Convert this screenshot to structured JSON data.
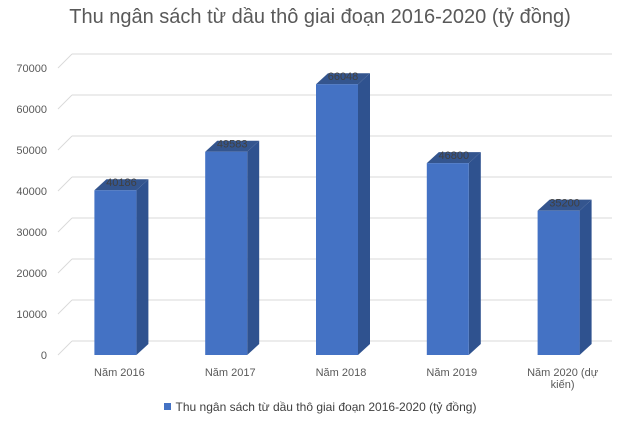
{
  "chart_data": {
    "type": "bar",
    "title": "Thu ngân sách từ dầu thô giai đoạn 2016-2020 (tỷ đồng)",
    "categories": [
      [
        "Năm 2016"
      ],
      [
        "Năm 2017"
      ],
      [
        "Năm 2018"
      ],
      [
        "Năm 2019"
      ],
      [
        "Năm 2020 (dự",
        "kiến)"
      ]
    ],
    "series": [
      {
        "name": "Thu ngân sách từ dầu thô giai đoạn 2016-2020 (tỷ đồng)",
        "values": [
          40186,
          49583,
          66048,
          46800,
          35200
        ],
        "color": "#4472C4"
      }
    ],
    "ylim": [
      0,
      70000
    ],
    "yticks": [
      0,
      10000,
      20000,
      30000,
      40000,
      50000,
      60000,
      70000
    ],
    "bar_style": "3d",
    "grid": true,
    "legend": "bottom"
  }
}
